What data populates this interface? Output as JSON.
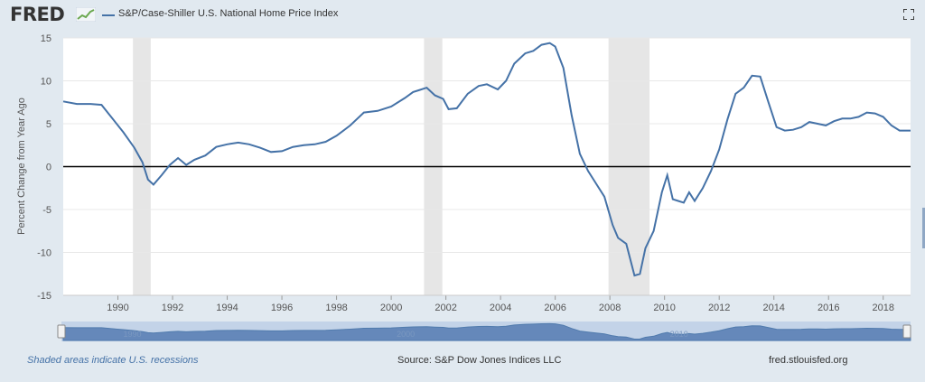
{
  "header": {
    "logo_text": "FRED",
    "fullscreen_icon": "expand-icon"
  },
  "chart_data": {
    "type": "line",
    "title": "",
    "ylabel": "Percent Change from Year Ago",
    "xlabel": "",
    "xlim": [
      1988,
      2019
    ],
    "ylim": [
      -15,
      15
    ],
    "yticks": [
      15,
      10,
      5,
      0,
      -5,
      -10,
      -15
    ],
    "xticks": [
      1990,
      1992,
      1994,
      1996,
      1998,
      2000,
      2002,
      2004,
      2006,
      2008,
      2010,
      2012,
      2014,
      2016,
      2018
    ],
    "navigator_ticks": [
      1990,
      2000,
      2010
    ],
    "recessions": [
      [
        1990.55,
        1991.2
      ],
      [
        2001.2,
        2001.87
      ],
      [
        2007.95,
        2009.45
      ]
    ],
    "grid": true,
    "legend": "top-left",
    "zero_line": true,
    "line_color": "#4572a7",
    "series": [
      {
        "name": "S&P/Case-Shiller U.S. National Home Price Index",
        "x": [
          1988.0,
          1988.5,
          1989.0,
          1989.4,
          1989.8,
          1990.2,
          1990.6,
          1990.9,
          1991.1,
          1991.3,
          1991.6,
          1991.9,
          1992.2,
          1992.5,
          1992.8,
          1993.2,
          1993.6,
          1994.0,
          1994.4,
          1994.8,
          1995.2,
          1995.6,
          1996.0,
          1996.4,
          1996.8,
          1997.2,
          1997.6,
          1998.0,
          1998.5,
          1999.0,
          1999.5,
          2000.0,
          2000.5,
          2000.8,
          2001.0,
          2001.3,
          2001.6,
          2001.9,
          2002.1,
          2002.4,
          2002.8,
          2003.2,
          2003.5,
          2003.9,
          2004.2,
          2004.5,
          2004.9,
          2005.2,
          2005.5,
          2005.8,
          2006.0,
          2006.3,
          2006.6,
          2006.9,
          2007.2,
          2007.5,
          2007.8,
          2008.1,
          2008.3,
          2008.6,
          2008.9,
          2009.1,
          2009.3,
          2009.6,
          2009.9,
          2010.1,
          2010.3,
          2010.5,
          2010.7,
          2010.9,
          2011.1,
          2011.4,
          2011.7,
          2012.0,
          2012.3,
          2012.6,
          2012.9,
          2013.2,
          2013.5,
          2013.8,
          2014.1,
          2014.4,
          2014.7,
          2015.0,
          2015.3,
          2015.6,
          2015.9,
          2016.2,
          2016.5,
          2016.8,
          2017.1,
          2017.4,
          2017.7,
          2018.0,
          2018.3,
          2018.6,
          2018.9,
          2019.0
        ],
        "values": [
          7.6,
          7.3,
          7.3,
          7.2,
          5.6,
          4.0,
          2.2,
          0.5,
          -1.5,
          -2.1,
          -1.0,
          0.2,
          1.0,
          0.2,
          0.8,
          1.3,
          2.3,
          2.6,
          2.8,
          2.6,
          2.2,
          1.7,
          1.8,
          2.3,
          2.5,
          2.6,
          2.9,
          3.6,
          4.8,
          6.3,
          6.5,
          7.0,
          8.0,
          8.7,
          8.9,
          9.2,
          8.3,
          7.9,
          6.7,
          6.8,
          8.5,
          9.4,
          9.6,
          9.0,
          10.0,
          12.0,
          13.2,
          13.5,
          14.2,
          14.4,
          14.0,
          11.5,
          6.0,
          1.5,
          -0.5,
          -2.0,
          -3.5,
          -6.8,
          -8.3,
          -9.0,
          -12.7,
          -12.5,
          -9.5,
          -7.5,
          -3.0,
          -1.0,
          -3.8,
          -4.0,
          -4.2,
          -3.0,
          -4.0,
          -2.5,
          -0.5,
          2.0,
          5.5,
          8.5,
          9.2,
          10.6,
          10.5,
          7.5,
          4.6,
          4.2,
          4.3,
          4.6,
          5.2,
          5.0,
          4.8,
          5.3,
          5.6,
          5.6,
          5.8,
          6.3,
          6.2,
          5.8,
          4.8,
          4.2,
          4.2,
          4.2
        ]
      }
    ]
  },
  "footer": {
    "recession_note": "Shaded areas indicate U.S. recessions",
    "source": "Source: S&P Dow Jones Indices LLC",
    "site": "fred.stlouisfed.org"
  }
}
